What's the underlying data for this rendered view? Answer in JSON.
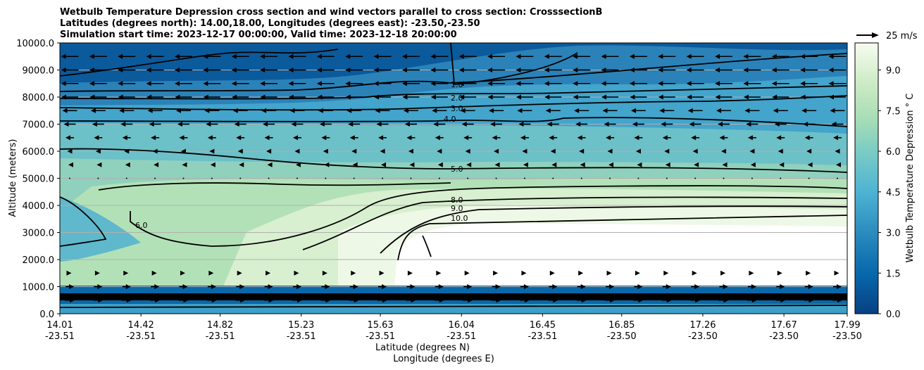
{
  "chart_data": {
    "type": "contour",
    "title_lines": [
      "Wetbulb Temperature Depression cross section and wind vectors parallel to cross section: CrosssectionB",
      "Latitudes (degrees north): 14.00,18.00, Longitudes (degrees east): -23.50,-23.50",
      "Simulation start time: 2023-12-17 00:00:00, Valid time: 2023-12-18 20:00:00"
    ],
    "ylabel": "Altitude (meters)",
    "xlabel_lines": [
      "Latitude (degrees N)",
      "Longitude (degrees E)"
    ],
    "ylim": [
      0,
      10000
    ],
    "y_ticks": [
      "0.0",
      "1000.0",
      "2000.0",
      "3000.0",
      "4000.0",
      "5000.0",
      "6000.0",
      "7000.0",
      "8000.0",
      "9000.0",
      "10000.0"
    ],
    "x_ticks": [
      {
        "lat": "14.01",
        "lon": "-23.51"
      },
      {
        "lat": "14.42",
        "lon": "-23.51"
      },
      {
        "lat": "14.82",
        "lon": "-23.51"
      },
      {
        "lat": "15.23",
        "lon": "-23.51"
      },
      {
        "lat": "15.63",
        "lon": "-23.51"
      },
      {
        "lat": "16.04",
        "lon": "-23.51"
      },
      {
        "lat": "16.45",
        "lon": "-23.51"
      },
      {
        "lat": "16.85",
        "lon": "-23.50"
      },
      {
        "lat": "17.26",
        "lon": "-23.50"
      },
      {
        "lat": "17.67",
        "lon": "-23.50"
      },
      {
        "lat": "17.99",
        "lon": "-23.50"
      }
    ],
    "x_range_lat": [
      14.01,
      17.99
    ],
    "grid": "horizontal",
    "colorbar": {
      "label": "Wetbulb Temperature Depression ° C",
      "range": [
        0.0,
        10.0
      ],
      "ticks": [
        "0.0",
        "1.5",
        "3.0",
        "4.5",
        "6.0",
        "7.5",
        "9.0"
      ],
      "tick_values": [
        0.0,
        1.5,
        3.0,
        4.5,
        6.0,
        7.5,
        9.0
      ],
      "colormap": "GnBu_r"
    },
    "quiver_key": {
      "label": "25 m/s",
      "speed": 25
    },
    "contour_levels_labeled": [
      "1.0",
      "2.0",
      "3.0",
      "4.0",
      "5.0",
      "6.0",
      "8.0",
      "9.0",
      "10.0"
    ],
    "wind_profile": [
      {
        "alt": 9500,
        "dir": "west",
        "speed": 25
      },
      {
        "alt": 9000,
        "dir": "west",
        "speed": 25
      },
      {
        "alt": 8500,
        "dir": "west",
        "speed": 25
      },
      {
        "alt": 8000,
        "dir": "west",
        "speed": 24
      },
      {
        "alt": 7500,
        "dir": "west",
        "speed": 21
      },
      {
        "alt": 7000,
        "dir": "west",
        "speed": 17
      },
      {
        "alt": 6500,
        "dir": "west",
        "speed": 12
      },
      {
        "alt": 6000,
        "dir": "west",
        "speed": 7
      },
      {
        "alt": 5500,
        "dir": "west",
        "speed": 4
      },
      {
        "alt": 5000,
        "dir": "west",
        "speed": 2
      },
      {
        "alt": 1500,
        "dir": "east",
        "speed": 5
      },
      {
        "alt": 1000,
        "dir": "east",
        "speed": 12
      },
      {
        "alt": 500,
        "dir": "east",
        "speed": 14
      }
    ],
    "colors": {
      "low": "#084081",
      "mid": "#4eb3d3",
      "high": "#f7fcf0"
    }
  }
}
